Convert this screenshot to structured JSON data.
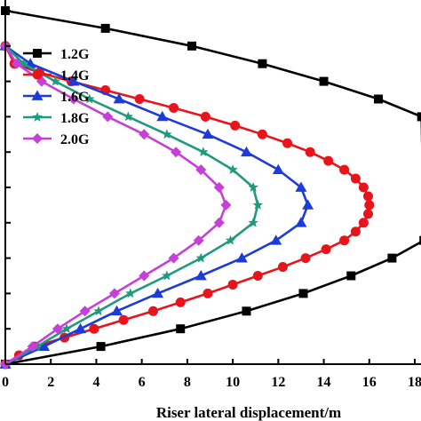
{
  "chart_data": {
    "type": "line",
    "title": "",
    "xlabel": "Riser lateral displacement/m",
    "ylabel": "",
    "xlim": [
      0,
      18
    ],
    "ylim": [
      0,
      1
    ],
    "x_ticks": [
      0,
      2,
      4,
      6,
      8,
      10,
      12,
      14,
      16,
      18
    ],
    "x_tick_labels": [
      "0",
      "2",
      "4",
      "6",
      "8",
      "10",
      "12",
      "14",
      "16",
      "18"
    ],
    "y_ticks": [
      0,
      0.1,
      0.2,
      0.3,
      0.4,
      0.5,
      0.6,
      0.7,
      0.8,
      0.9,
      1.0
    ],
    "grid": false,
    "legend_position": "top-left",
    "series": [
      {
        "name": "1.2G",
        "color": "#000000",
        "marker": "square",
        "points": [
          [
            0,
            0
          ],
          [
            4.2,
            0.05
          ],
          [
            7.7,
            0.1
          ],
          [
            10.6,
            0.15
          ],
          [
            13.1,
            0.2
          ],
          [
            15.2,
            0.25
          ],
          [
            17.0,
            0.3
          ],
          [
            18.4,
            0.35
          ],
          [
            18.3,
            0.7
          ],
          [
            16.4,
            0.75
          ],
          [
            14.0,
            0.8
          ],
          [
            11.3,
            0.85
          ],
          [
            8.2,
            0.9
          ],
          [
            4.4,
            0.95
          ],
          [
            0,
            1.0
          ]
        ]
      },
      {
        "name": "1.4G",
        "color": "#e8141b",
        "marker": "circle",
        "points": [
          [
            0,
            0
          ],
          [
            0.6,
            0.025
          ],
          [
            1.3,
            0.05
          ],
          [
            2.6,
            0.075
          ],
          [
            3.9,
            0.1
          ],
          [
            5.2,
            0.125
          ],
          [
            6.5,
            0.15
          ],
          [
            7.7,
            0.175
          ],
          [
            8.9,
            0.2
          ],
          [
            10.0,
            0.225
          ],
          [
            11.1,
            0.25
          ],
          [
            12.2,
            0.275
          ],
          [
            13.2,
            0.3
          ],
          [
            14.1,
            0.325
          ],
          [
            14.9,
            0.35
          ],
          [
            15.4,
            0.375
          ],
          [
            15.75,
            0.4
          ],
          [
            15.95,
            0.425
          ],
          [
            16.0,
            0.45
          ],
          [
            15.95,
            0.475
          ],
          [
            15.75,
            0.5
          ],
          [
            15.4,
            0.525
          ],
          [
            14.9,
            0.55
          ],
          [
            14.2,
            0.575
          ],
          [
            13.4,
            0.6
          ],
          [
            12.4,
            0.625
          ],
          [
            11.3,
            0.65
          ],
          [
            10.1,
            0.675
          ],
          [
            8.8,
            0.7
          ],
          [
            7.4,
            0.725
          ],
          [
            5.9,
            0.75
          ],
          [
            4.4,
            0.775
          ],
          [
            2.9,
            0.8
          ],
          [
            1.5,
            0.825
          ],
          [
            0.4,
            0.85
          ],
          [
            0,
            0.9
          ]
        ]
      },
      {
        "name": "1.6G",
        "color": "#1d3cd7",
        "marker": "triangle",
        "points": [
          [
            0,
            0
          ],
          [
            1.7,
            0.05
          ],
          [
            3.3,
            0.1
          ],
          [
            4.9,
            0.15
          ],
          [
            6.7,
            0.2
          ],
          [
            8.6,
            0.25
          ],
          [
            10.4,
            0.3
          ],
          [
            11.9,
            0.35
          ],
          [
            13.0,
            0.4
          ],
          [
            13.3,
            0.45
          ],
          [
            13.0,
            0.5
          ],
          [
            12.0,
            0.55
          ],
          [
            10.6,
            0.6
          ],
          [
            8.9,
            0.65
          ],
          [
            6.9,
            0.7
          ],
          [
            5.0,
            0.75
          ],
          [
            3.0,
            0.8
          ],
          [
            1.1,
            0.85
          ],
          [
            0,
            0.9
          ]
        ]
      },
      {
        "name": "1.8G",
        "color": "#1e9a7c",
        "marker": "star",
        "points": [
          [
            0,
            0
          ],
          [
            1.4,
            0.05
          ],
          [
            2.7,
            0.1
          ],
          [
            4.1,
            0.15
          ],
          [
            5.5,
            0.2
          ],
          [
            7.1,
            0.25
          ],
          [
            8.6,
            0.3
          ],
          [
            9.9,
            0.35
          ],
          [
            10.9,
            0.4
          ],
          [
            11.1,
            0.45
          ],
          [
            10.9,
            0.5
          ],
          [
            10.0,
            0.55
          ],
          [
            8.7,
            0.6
          ],
          [
            7.1,
            0.65
          ],
          [
            5.4,
            0.7
          ],
          [
            3.7,
            0.75
          ],
          [
            2.2,
            0.8
          ],
          [
            0.8,
            0.85
          ],
          [
            0,
            0.9
          ]
        ]
      },
      {
        "name": "2.0G",
        "color": "#c53fd8",
        "marker": "diamond",
        "points": [
          [
            0,
            0
          ],
          [
            1.2,
            0.05
          ],
          [
            2.3,
            0.1
          ],
          [
            3.5,
            0.15
          ],
          [
            4.8,
            0.2
          ],
          [
            6.1,
            0.25
          ],
          [
            7.4,
            0.3
          ],
          [
            8.5,
            0.35
          ],
          [
            9.4,
            0.4
          ],
          [
            9.7,
            0.45
          ],
          [
            9.4,
            0.5
          ],
          [
            8.6,
            0.55
          ],
          [
            7.5,
            0.6
          ],
          [
            6.1,
            0.65
          ],
          [
            4.5,
            0.7
          ],
          [
            3.0,
            0.75
          ],
          [
            1.6,
            0.8
          ],
          [
            0.5,
            0.85
          ],
          [
            0,
            0.9
          ]
        ]
      }
    ]
  }
}
